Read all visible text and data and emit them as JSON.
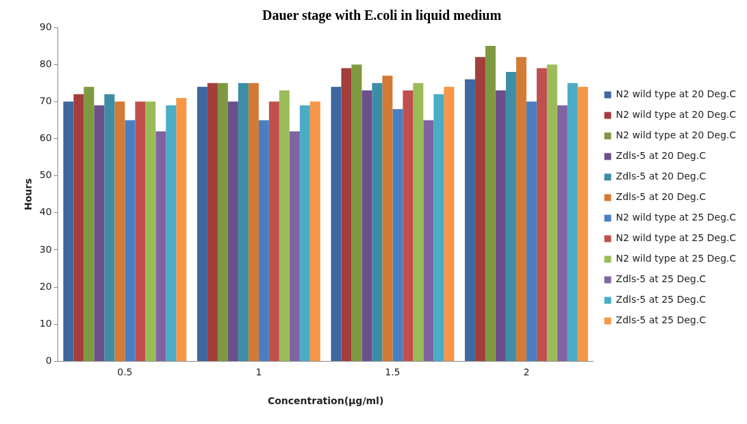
{
  "chart_data": {
    "type": "bar",
    "title": "Dauer stage with E.coli in liquid medium",
    "xlabel": "Concentration(μg/ml)",
    "ylabel": "Hours",
    "categories": [
      "0.5",
      "1",
      "1.5",
      "2"
    ],
    "series": [
      {
        "name": "N2 wild type at 20 Deg.C",
        "color": "#3f67a0",
        "values": [
          70,
          74,
          74,
          76
        ]
      },
      {
        "name": "N2 wild type at 20 Deg.C",
        "color": "#a33e3b",
        "values": [
          72,
          75,
          79,
          82
        ]
      },
      {
        "name": "N2 wild type at 20 Deg.C",
        "color": "#7d9a40",
        "values": [
          74,
          75,
          80,
          85
        ]
      },
      {
        "name": "Zdls-5 at 20 Deg.C",
        "color": "#6a4f8b",
        "values": [
          69,
          70,
          73,
          73
        ]
      },
      {
        "name": "Zdls-5 at 20 Deg.C",
        "color": "#3b8ea5",
        "values": [
          72,
          75,
          75,
          78
        ]
      },
      {
        "name": "Zdls-5 at 20 Deg.C",
        "color": "#d37a34",
        "values": [
          70,
          75,
          77,
          82
        ]
      },
      {
        "name": "N2 wild type at 25 Deg.C",
        "color": "#4a7ec2",
        "values": [
          65,
          65,
          68,
          70
        ]
      },
      {
        "name": "N2 wild type at 25 Deg.C",
        "color": "#c0504d",
        "values": [
          70,
          70,
          73,
          79
        ]
      },
      {
        "name": "N2 wild type at 25 Deg.C",
        "color": "#9bbb59",
        "values": [
          70,
          73,
          75,
          80
        ]
      },
      {
        "name": "Zdls-5 at 25 Deg.C",
        "color": "#8064a2",
        "values": [
          62,
          62,
          65,
          69
        ]
      },
      {
        "name": "Zdls-5 at 25 Deg.C",
        "color": "#4bacc6",
        "values": [
          69,
          69,
          72,
          75
        ]
      },
      {
        "name": "Zdls-5 at 25 Deg.C",
        "color": "#f79646",
        "values": [
          71,
          70,
          74,
          74
        ]
      }
    ],
    "ylim": [
      0,
      90
    ],
    "yticks": [
      0,
      10,
      20,
      30,
      40,
      50,
      60,
      70,
      80,
      90
    ],
    "grid": false,
    "legend": "right"
  }
}
